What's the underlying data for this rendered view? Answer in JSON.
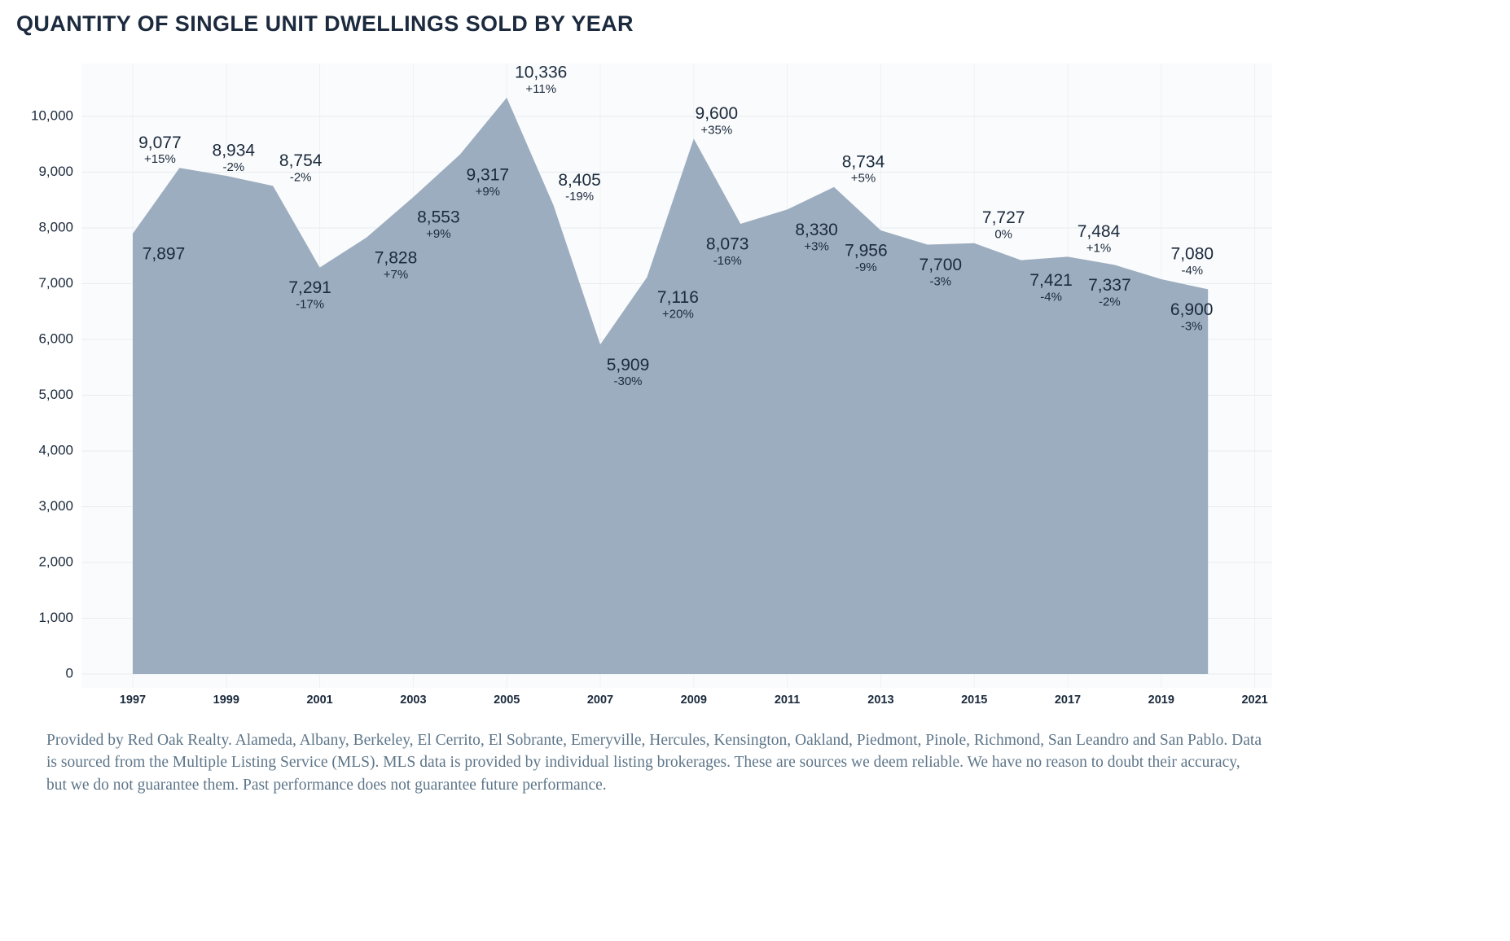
{
  "title": "QUANTITY OF SINGLE UNIT DWELLINGS SOLD BY YEAR",
  "footer": "Provided by Red Oak Realty. Alameda, Albany, Berkeley, El Cerrito, El Sobrante, Emeryville, Hercules, Kensington, Oakland, Piedmont, Pinole, Richmond, San Leandro and San Pablo. Data is sourced from the Multiple Listing Service (MLS). MLS data is provided by individual listing brokerages. These are sources we deem reliable. We have no reason to doubt their accuracy, but we do not guarantee them. Past performance does not guarantee future performance.",
  "colors": {
    "area_fill": "#9cadc0",
    "plot_bg": "#fafbfc",
    "grid_h": "#e8ecef",
    "grid_v": "#eef2f4",
    "axis_text": "#1b2a3c",
    "label_text": "#1b2a3c",
    "title_text": "#1b2a3e",
    "footer_text": "#5e7689"
  },
  "chart_data": {
    "type": "area",
    "title": "QUANTITY OF SINGLE UNIT DWELLINGS SOLD BY YEAR",
    "xlabel": "",
    "ylabel": "",
    "x": [
      1997,
      1998,
      1999,
      2000,
      2001,
      2002,
      2003,
      2004,
      2005,
      2006,
      2007,
      2008,
      2009,
      2010,
      2011,
      2012,
      2013,
      2014,
      2015,
      2016,
      2017,
      2018,
      2019,
      2020
    ],
    "values": [
      7897,
      9077,
      8934,
      8754,
      7291,
      7828,
      8553,
      9317,
      10336,
      8405,
      5909,
      7116,
      9600,
      8073,
      8330,
      8734,
      7956,
      7700,
      7727,
      7421,
      7484,
      7337,
      7080,
      6900
    ],
    "pct_change": [
      "",
      "+15%",
      "-2%",
      "-2%",
      "-17%",
      "+7%",
      "+9%",
      "+9%",
      "+11%",
      "-19%",
      "-30%",
      "+20%",
      "+35%",
      "-16%",
      "+3%",
      "+5%",
      "-9%",
      "-3%",
      "0%",
      "-4%",
      "+1%",
      "-2%",
      "-4%",
      "-3%"
    ],
    "label_side": [
      "below",
      "above",
      "above",
      "above",
      "below",
      "below",
      "below",
      "below",
      "above",
      "above",
      "below",
      "below",
      "above",
      "below",
      "below",
      "above",
      "below",
      "below",
      "above",
      "below",
      "above",
      "below",
      "above",
      "below"
    ],
    "ylim": [
      0,
      10000
    ],
    "ytick_step": 1000,
    "xticks": [
      1997,
      1999,
      2001,
      2003,
      2005,
      2007,
      2009,
      2011,
      2013,
      2015,
      2017,
      2019,
      2021
    ],
    "grid": true,
    "legend": "none"
  }
}
